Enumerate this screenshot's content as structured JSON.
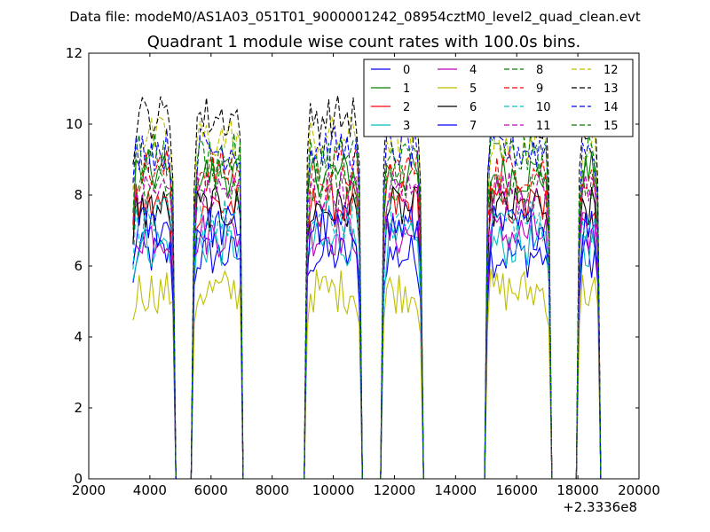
{
  "chart_data": {
    "type": "line",
    "suptitle": "Data file: modeM0/AS1A03_051T01_9000001242_08954cztM0_level2_quad_clean.evt",
    "title": "Quadrant 1 module wise count rates with 100.0s bins.",
    "xlabel": "",
    "ylabel": "",
    "xlim": [
      2000,
      20000
    ],
    "ylim": [
      0,
      12
    ],
    "x_offset_label": "+2.3336e8",
    "xticks": [
      2000,
      4000,
      6000,
      8000,
      10000,
      12000,
      14000,
      16000,
      18000,
      20000
    ],
    "xtick_labels": [
      "2000",
      "4000",
      "6000",
      "8000",
      "10000",
      "12000",
      "14000",
      "16000",
      "18000",
      "20000"
    ],
    "yticks": [
      0,
      2,
      4,
      6,
      8,
      10,
      12
    ],
    "ytick_labels": [
      "0",
      "2",
      "4",
      "6",
      "8",
      "10",
      "12"
    ],
    "legend_position": "top-right",
    "bin_size": 100,
    "x_start": 3450,
    "num_bins": 154,
    "segments": [
      {
        "x_start": 3450,
        "x_end": 4750
      },
      {
        "x_start": 5450,
        "x_end": 7000
      },
      {
        "x_start": 9150,
        "x_end": 10850
      },
      {
        "x_start": 11650,
        "x_end": 12850
      },
      {
        "x_start": 15050,
        "x_end": 17050
      },
      {
        "x_start": 18050,
        "x_end": 18650
      }
    ],
    "series": [
      {
        "name": "0",
        "color": "#0000ff",
        "dash": "solid",
        "level": 6.3
      },
      {
        "name": "1",
        "color": "#008000",
        "dash": "solid",
        "level": 8.6
      },
      {
        "name": "2",
        "color": "#ff0000",
        "dash": "solid",
        "level": 7.7
      },
      {
        "name": "3",
        "color": "#00bfbf",
        "dash": "solid",
        "level": 6.6
      },
      {
        "name": "4",
        "color": "#bf00bf",
        "dash": "solid",
        "level": 6.9
      },
      {
        "name": "5",
        "color": "#bfbf00",
        "dash": "solid",
        "level": 5.3
      },
      {
        "name": "6",
        "color": "#000000",
        "dash": "solid",
        "level": 7.6
      },
      {
        "name": "7",
        "color": "#0000ff",
        "dash": "solid",
        "level": 7.1
      },
      {
        "name": "8",
        "color": "#008000",
        "dash": "dashed",
        "level": 8.4
      },
      {
        "name": "9",
        "color": "#ff0000",
        "dash": "dashed",
        "level": 8.7
      },
      {
        "name": "10",
        "color": "#00bfbf",
        "dash": "dashed",
        "level": 7.3
      },
      {
        "name": "11",
        "color": "#bf00bf",
        "dash": "dashed",
        "level": 8.1
      },
      {
        "name": "12",
        "color": "#bfbf00",
        "dash": "dashed",
        "level": 9.6
      },
      {
        "name": "13",
        "color": "#000000",
        "dash": "dashed",
        "level": 10.2
      },
      {
        "name": "14",
        "color": "#0000ff",
        "dash": "dashed",
        "level": 9.3
      },
      {
        "name": "15",
        "color": "#008000",
        "dash": "dashed",
        "level": 9.1
      }
    ]
  }
}
